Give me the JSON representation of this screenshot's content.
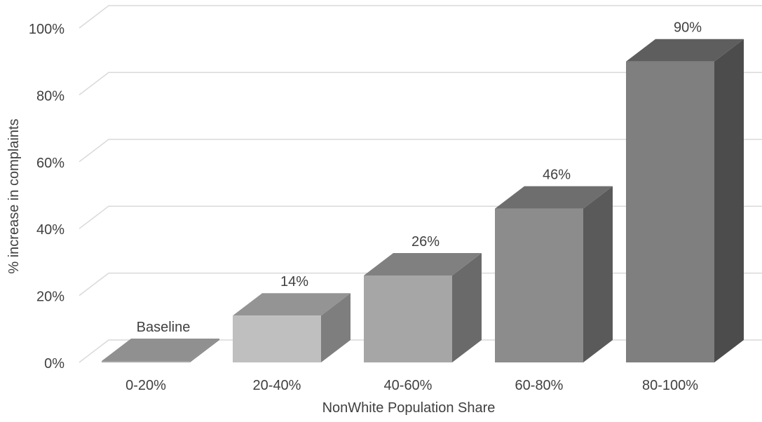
{
  "chart_data": {
    "type": "bar",
    "title": "",
    "xlabel": "NonWhite Population Share",
    "ylabel": "% increase in complaints",
    "categories": [
      "0-20%",
      "20-40%",
      "40-60%",
      "60-80%",
      "80-100%"
    ],
    "values": [
      0,
      14,
      26,
      46,
      90
    ],
    "data_labels": [
      "Baseline",
      "14%",
      "26%",
      "46%",
      "90%"
    ],
    "yticks": [
      0,
      20,
      40,
      60,
      80,
      100
    ],
    "ytick_labels": [
      "0%",
      "20%",
      "40%",
      "60%",
      "80%",
      "100%"
    ],
    "ylim": [
      0,
      100
    ],
    "grid": true,
    "legend": "none",
    "style": "3d-column",
    "colors": {
      "front": [
        "#a6a6a6",
        "#bfbfbf",
        "#a6a6a6",
        "#8c8c8c",
        "#7f7f7f"
      ],
      "top": [
        "#909090",
        "#949494",
        "#808080",
        "#6e6e6e",
        "#5e5e5e"
      ],
      "side": [
        "#888888",
        "#7e7e7e",
        "#6a6a6a",
        "#5a5a5a",
        "#4c4c4c"
      ],
      "grid": "#d9d9d9",
      "text": "#404040"
    }
  }
}
